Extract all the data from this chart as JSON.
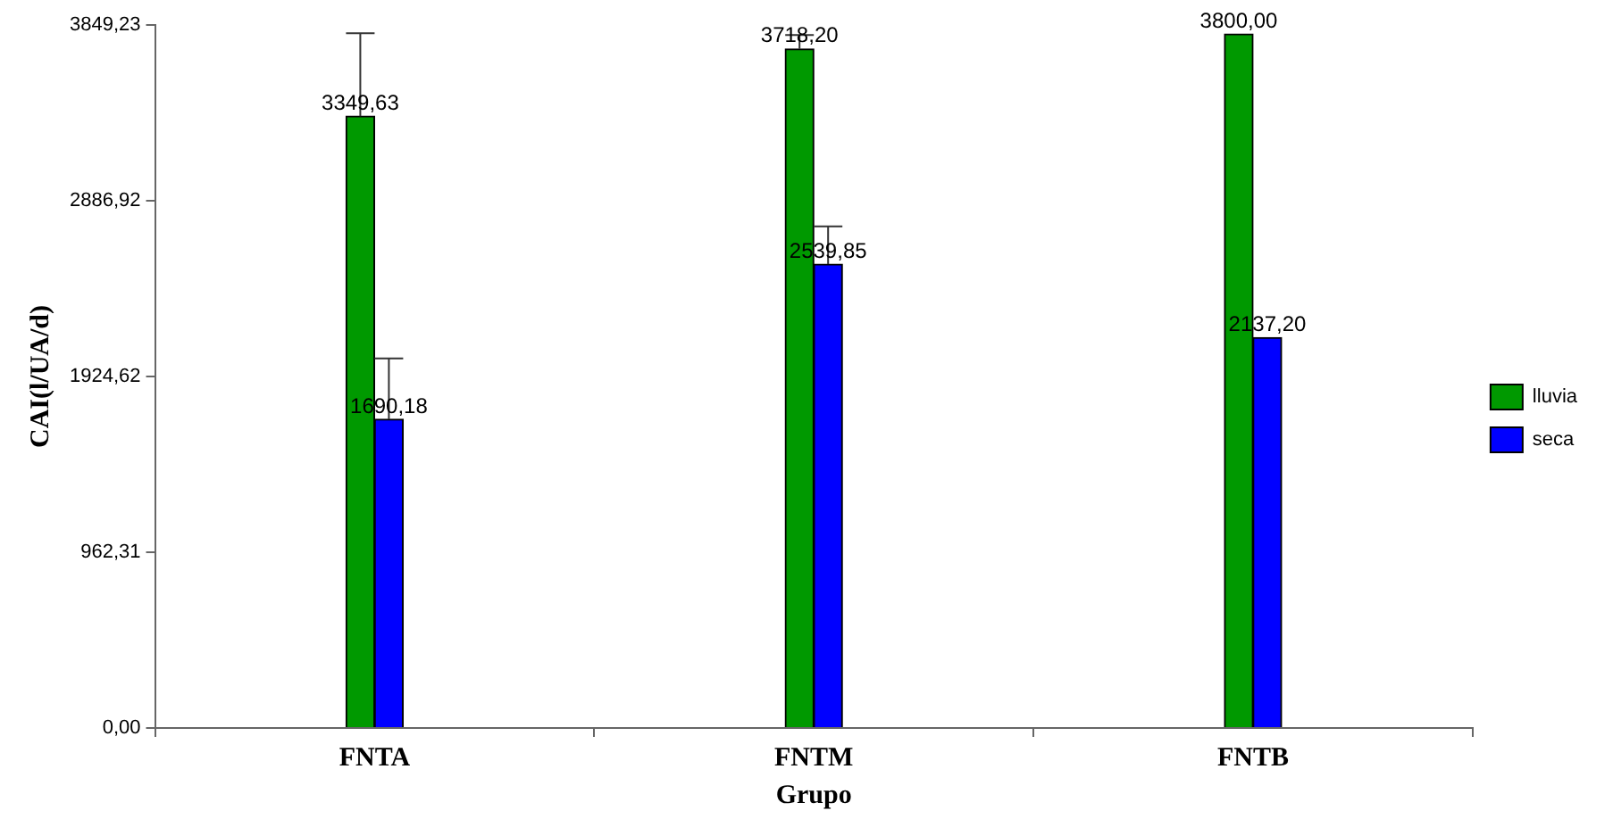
{
  "chart_data": {
    "type": "bar",
    "xlabel": "Grupo",
    "ylabel": "CAI(l/UA/d)",
    "categories": [
      "FNTA",
      "FNTM",
      "FNTB"
    ],
    "series": [
      {
        "name": "lluvia",
        "color": "#009900",
        "values": [
          3349.63,
          3718.2,
          3800.0
        ],
        "value_labels": [
          "3349,63",
          "3718,20",
          "3800,00"
        ],
        "errors": [
          [
            3349.63,
            3804
          ],
          [
            3718.2,
            3794
          ],
          null
        ]
      },
      {
        "name": "seca",
        "color": "#0000ff",
        "values": [
          1690.18,
          2539.85,
          2137.2
        ],
        "value_labels": [
          "1690,18",
          "2539,85",
          "2137,20"
        ],
        "errors": [
          [
            1690.18,
            2024
          ],
          [
            2539.85,
            2747
          ],
          null
        ]
      }
    ],
    "ylim": [
      0,
      3849.23
    ],
    "yticks": [
      {
        "value": 0,
        "label": "0,00"
      },
      {
        "value": 962.31,
        "label": "962,31"
      },
      {
        "value": 1924.62,
        "label": "1924,62"
      },
      {
        "value": 2886.92,
        "label": "2886,92"
      },
      {
        "value": 3849.23,
        "label": "3849,23"
      }
    ],
    "legend": "right"
  }
}
